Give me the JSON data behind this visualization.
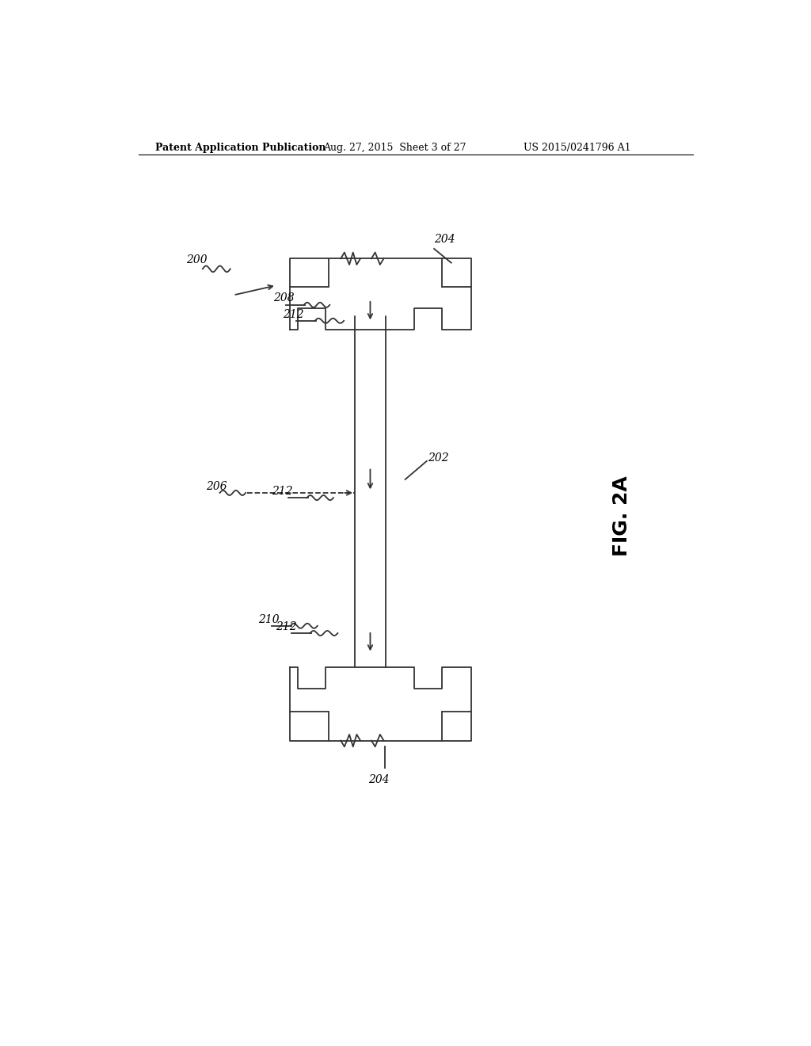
{
  "bg_color": "#ffffff",
  "line_color": "#333333",
  "line_width": 1.3,
  "header_left": "Patent Application Publication",
  "header_mid": "Aug. 27, 2015  Sheet 3 of 27",
  "header_right": "US 2015/0241796 A1",
  "fig_label": "FIG. 2A",
  "label_200": "200",
  "label_202": "202",
  "label_204_top": "204",
  "label_204_bot": "204",
  "label_206": "206",
  "label_208": "208",
  "label_210": "210",
  "label_212_1": "212",
  "label_212_2": "212",
  "label_212_3": "212"
}
